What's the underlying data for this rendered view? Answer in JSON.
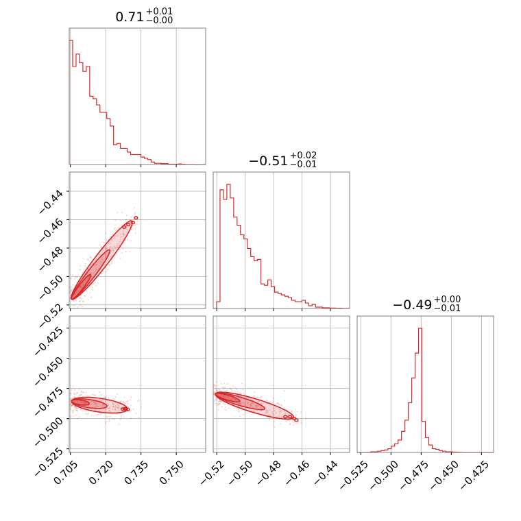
{
  "chart_data": {
    "type": "corner",
    "color": "#d62728",
    "grid": true,
    "titles": [
      {
        "value": "0.71",
        "plus": "+0.01",
        "minus": "−0.00"
      },
      {
        "value": "−0.51",
        "plus": "+0.02",
        "minus": "−0.01"
      },
      {
        "value": "−0.49",
        "plus": "+0.00",
        "minus": "−0.01"
      }
    ],
    "params": [
      {
        "range": [
          0.7045,
          0.7625
        ],
        "ticks": [
          0.705,
          0.72,
          0.735,
          0.75
        ],
        "tick_labels": [
          "0.705",
          "0.720",
          "0.735",
          "0.750"
        ]
      },
      {
        "range": [
          -0.5225,
          -0.4265
        ],
        "ticks": [
          -0.52,
          -0.5,
          -0.48,
          -0.46,
          -0.44
        ],
        "tick_labels": [
          "−0.52",
          "−0.50",
          "−0.48",
          "−0.46",
          "−0.44"
        ]
      },
      {
        "range": [
          -0.528,
          -0.415
        ],
        "ticks": [
          -0.525,
          -0.5,
          -0.475,
          -0.45,
          -0.425
        ],
        "tick_labels": [
          "−0.525",
          "−0.500",
          "−0.475",
          "−0.450",
          "−0.425"
        ]
      }
    ],
    "histograms": [
      {
        "edges_range": [
          0.7045,
          0.7625
        ],
        "counts": [
          100,
          79,
          89,
          82,
          75,
          79,
          55,
          53,
          48,
          42,
          42,
          37,
          31,
          16,
          17,
          13,
          13,
          10,
          8,
          8,
          8,
          6,
          5,
          4,
          2,
          1,
          1,
          0.7,
          0.7,
          0.3,
          0.3,
          0.2,
          0.5,
          0.2,
          0.1,
          0.1,
          0.1,
          0,
          0,
          0
        ]
      },
      {
        "edges_range": [
          -0.5225,
          -0.4265
        ],
        "counts": [
          0,
          5,
          87,
          80,
          91,
          81,
          67,
          61,
          54,
          51,
          44,
          38,
          35,
          36,
          18,
          17,
          21,
          16,
          12,
          11,
          10,
          9,
          8,
          6,
          5,
          5,
          6,
          4,
          2,
          3,
          1,
          1,
          0.5,
          0.5,
          0.3,
          0.3,
          0.2,
          0.2,
          0.1,
          0.1
        ]
      },
      {
        "edges_range": [
          -0.528,
          -0.415
        ],
        "counts": [
          0,
          0,
          0,
          0,
          0.5,
          0.5,
          1,
          1.5,
          2,
          3,
          5,
          7,
          10,
          17,
          26,
          40,
          60,
          80,
          100,
          25,
          12,
          6,
          3,
          2.5,
          1.5,
          1,
          0.5,
          0.5,
          0.3,
          0.2,
          0.1,
          0,
          0,
          0,
          0,
          0,
          0,
          0,
          0,
          0
        ]
      }
    ],
    "scatter_2d": [
      {
        "x_param": 0,
        "y_param": 1,
        "trend": {
          "x0": 0.7055,
          "y0": -0.516,
          "x1": 0.7325,
          "y1": -0.458
        },
        "spread": [
          0.0009,
          0.0032
        ]
      },
      {
        "x_param": 0,
        "y_param": 2,
        "trend": {
          "x0": 0.7055,
          "y0": -0.4855,
          "x1": 0.7305,
          "y1": -0.4925
        },
        "spread": [
          0.003,
          0.003
        ]
      },
      {
        "x_param": 1,
        "y_param": 2,
        "trend": {
          "x0": -0.521,
          "y0": -0.4795,
          "x1": -0.463,
          "y1": -0.5
        },
        "spread": [
          0.0035,
          0.0018
        ]
      }
    ]
  }
}
